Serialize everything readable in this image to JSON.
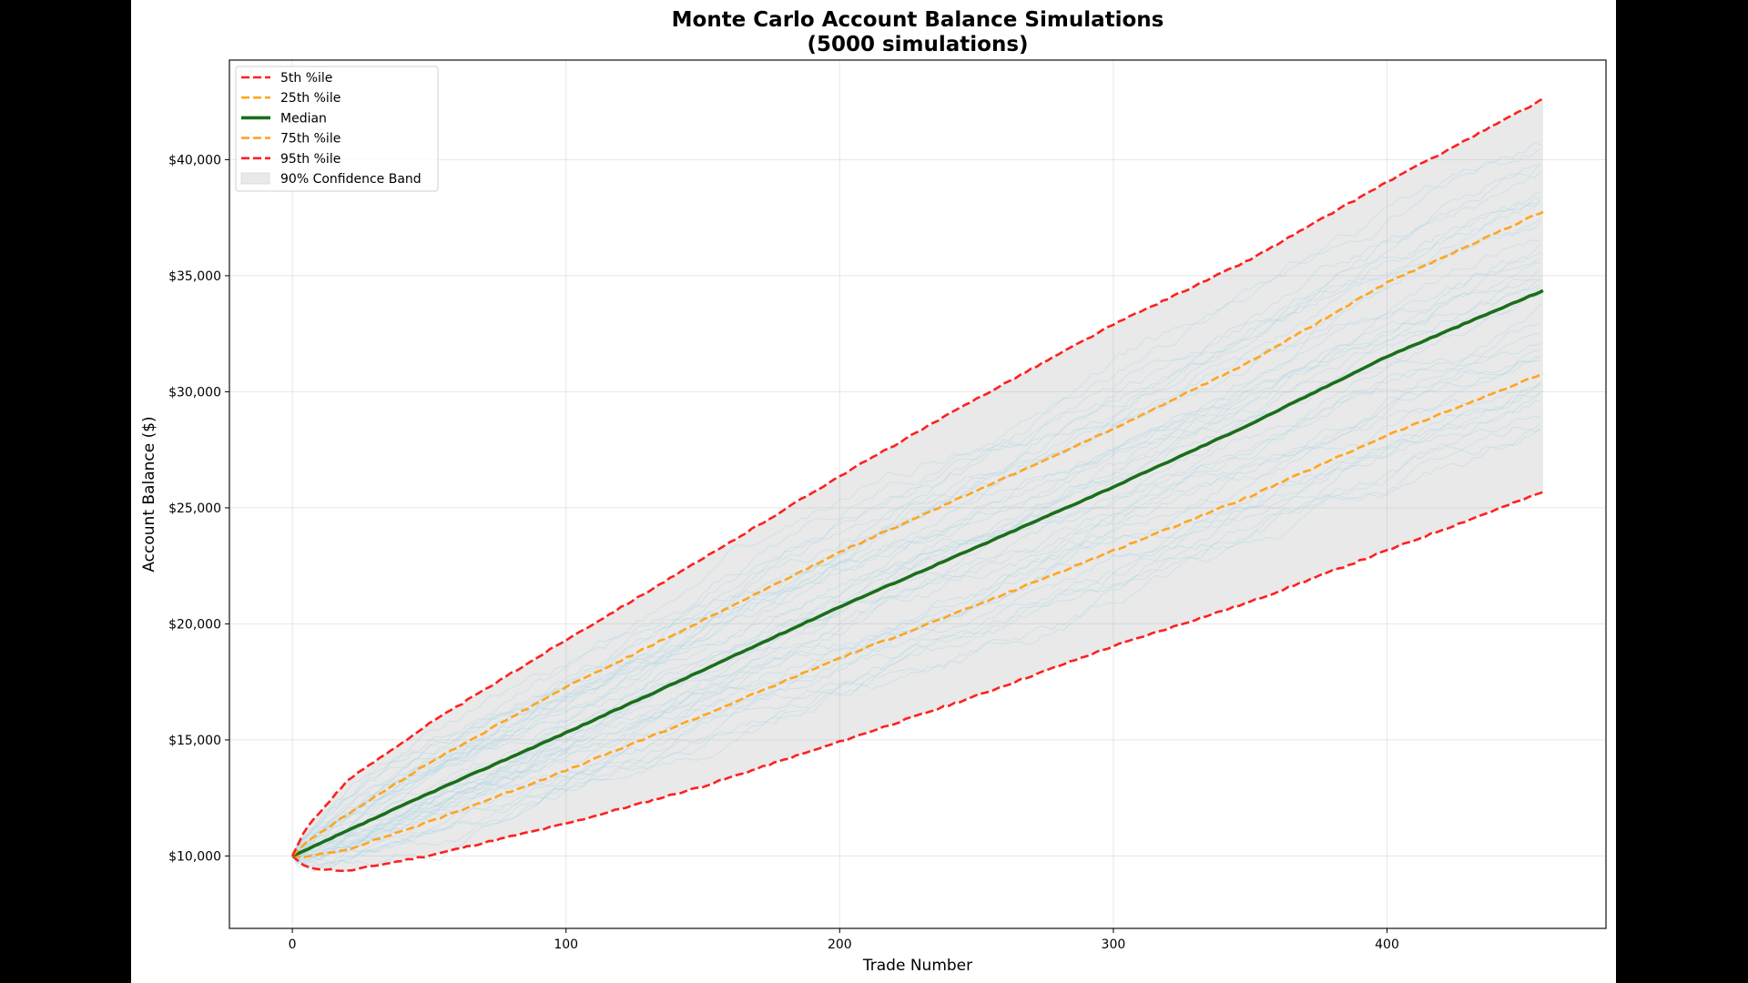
{
  "chart_data": {
    "type": "line",
    "title": "Monte Carlo Account Balance Simulations",
    "subtitle": "(5000 simulations)",
    "xlabel": "Trade Number",
    "ylabel": "Account Balance ($)",
    "xlim": [
      -23,
      480
    ],
    "ylim": [
      6880,
      44290
    ],
    "xticks": [
      0,
      100,
      200,
      300,
      400
    ],
    "xtick_labels": [
      "0",
      "100",
      "200",
      "300",
      "400"
    ],
    "yticks": [
      10000,
      15000,
      20000,
      25000,
      30000,
      35000,
      40000
    ],
    "ytick_labels": [
      "$10,000",
      "$15,000",
      "$20,000",
      "$25,000",
      "$30,000",
      "$35,000",
      "$40,000"
    ],
    "grid": true,
    "legend_position": "upper left",
    "x": [
      0,
      5,
      20,
      50,
      100,
      150,
      200,
      250,
      300,
      350,
      400,
      457
    ],
    "series": [
      {
        "name": "5th %ile",
        "style": "dashed",
        "color": "#ff1f1f",
        "values": [
          10000,
          9500,
          9350,
          10020,
          11390,
          13000,
          14920,
          16900,
          19040,
          20950,
          23160,
          25680
        ]
      },
      {
        "name": "25th %ile",
        "style": "dashed",
        "color": "#ffa51f",
        "values": [
          10000,
          9950,
          10280,
          11470,
          13680,
          16050,
          18530,
          20800,
          23160,
          25500,
          28125,
          30780
        ]
      },
      {
        "name": "Median",
        "style": "solid",
        "color": "#1a6e1a",
        "values": [
          10000,
          10250,
          11080,
          12700,
          15310,
          18000,
          20740,
          23300,
          25900,
          28600,
          31520,
          34360
        ]
      },
      {
        "name": "75th %ile",
        "style": "dashed",
        "color": "#ffa51f",
        "values": [
          10000,
          10600,
          11780,
          14020,
          17275,
          20150,
          23090,
          25750,
          28385,
          31300,
          34700,
          37760
        ]
      },
      {
        "name": "95th %ile",
        "style": "dashed",
        "color": "#ff1f1f",
        "values": [
          10000,
          11200,
          13240,
          15700,
          19310,
          22800,
          26370,
          29700,
          32895,
          35700,
          39040,
          42600
        ]
      }
    ],
    "band": {
      "name": "90% Confidence Band",
      "lower": "5th %ile",
      "upper": "95th %ile",
      "color": "#e9e9e9"
    },
    "sample_paths_color": "#add8e6",
    "sample_paths_count_shown": 40
  },
  "legend": {
    "items": [
      {
        "label": "5th %ile",
        "kind": "dashed",
        "color": "#ff1f1f"
      },
      {
        "label": "25th %ile",
        "kind": "dashed",
        "color": "#ffa51f"
      },
      {
        "label": "Median",
        "kind": "solid",
        "color": "#1a6e1a"
      },
      {
        "label": "75th %ile",
        "kind": "dashed",
        "color": "#ffa51f"
      },
      {
        "label": "95th %ile",
        "kind": "dashed",
        "color": "#ff1f1f"
      },
      {
        "label": "90% Confidence Band",
        "kind": "patch",
        "color": "#e9e9e9"
      }
    ]
  }
}
